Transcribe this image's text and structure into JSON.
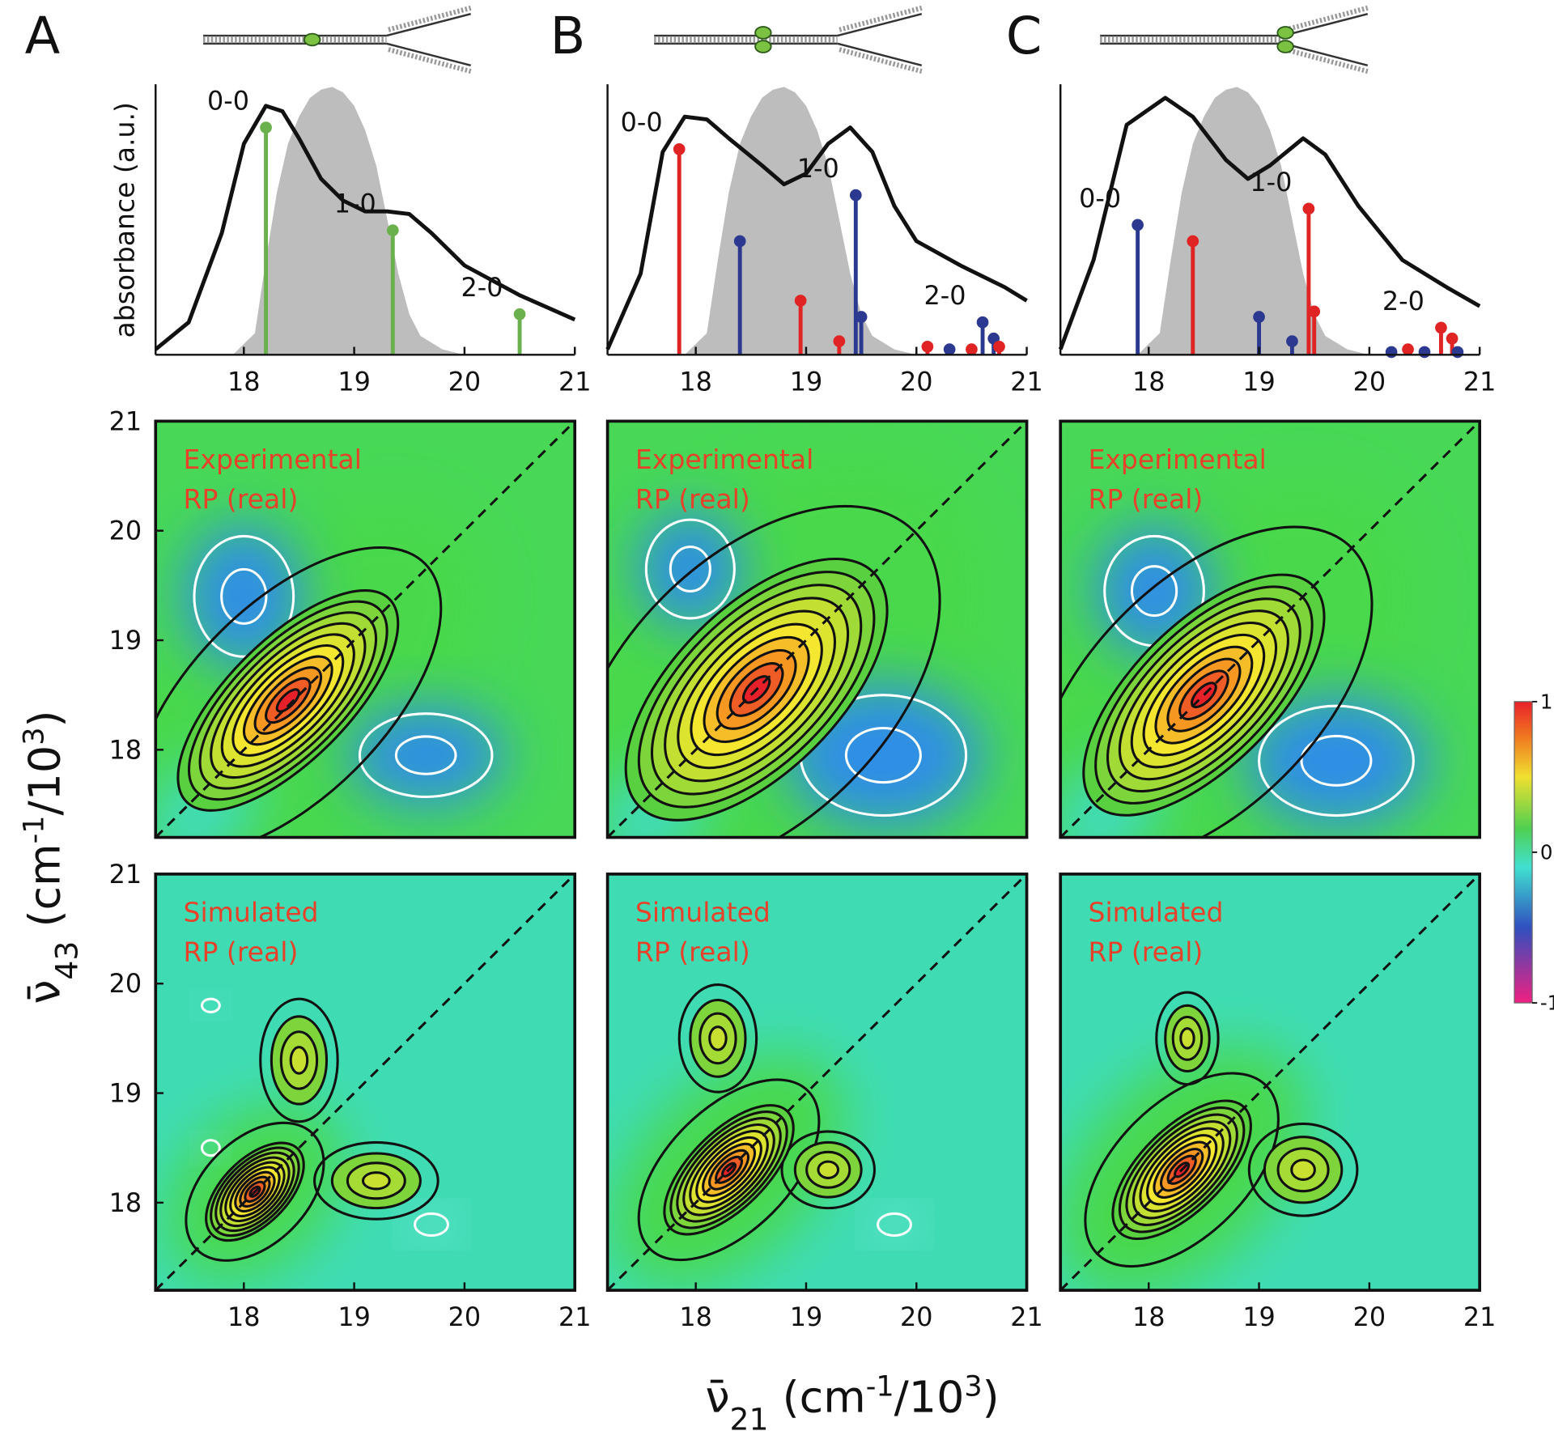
{
  "figure": {
    "panel_letters": [
      "A",
      "B",
      "C"
    ],
    "top_ylabel": "absorbance (a.u.)",
    "ylabel": [
      {
        "text": "ν̄"
      },
      {
        "text": "43",
        "shift": "sub"
      },
      {
        "text": " (cm"
      },
      {
        "text": "-1",
        "shift": "sup"
      },
      {
        "text": "/10"
      },
      {
        "text": "3",
        "shift": "sup"
      },
      {
        "text": ")"
      }
    ],
    "xlabel": [
      {
        "text": "ν̄"
      },
      {
        "text": "21",
        "shift": "sub"
      },
      {
        "text": " (cm"
      },
      {
        "text": "-1",
        "shift": "sup"
      },
      {
        "text": "/10"
      },
      {
        "text": "3",
        "shift": "sup"
      },
      {
        "text": ")"
      }
    ],
    "colorbar": {
      "lim": [
        -1,
        1
      ],
      "ticks": [
        1,
        0,
        -1
      ]
    }
  },
  "chart_data": [
    {
      "type": "stem",
      "xlim": [
        17.2,
        21
      ],
      "ylim": [
        0,
        1
      ],
      "xticks": [
        18,
        19,
        20,
        21
      ],
      "curve": {
        "x": [
          17.2,
          17.5,
          17.8,
          18.0,
          18.2,
          18.35,
          18.5,
          18.7,
          18.9,
          19.1,
          19.3,
          19.5,
          19.7,
          20.0,
          20.5,
          21.0
        ],
        "y": [
          0.02,
          0.12,
          0.45,
          0.78,
          0.92,
          0.9,
          0.8,
          0.65,
          0.57,
          0.53,
          0.53,
          0.52,
          0.45,
          0.33,
          0.22,
          0.13
        ]
      },
      "laser": {
        "x": [
          17.9,
          18.1,
          18.2,
          18.3,
          18.4,
          18.5,
          18.6,
          18.7,
          18.8,
          18.9,
          19.0,
          19.1,
          19.2,
          19.3,
          19.4,
          19.5,
          19.6,
          19.8,
          20.0
        ],
        "y": [
          0,
          0.08,
          0.35,
          0.6,
          0.78,
          0.88,
          0.95,
          0.98,
          0.99,
          0.97,
          0.92,
          0.83,
          0.7,
          0.5,
          0.3,
          0.15,
          0.07,
          0.02,
          0
        ]
      },
      "stems": [
        {
          "x": 18.2,
          "y": 0.84,
          "color": "#6ab04c",
          "label": "0-0"
        },
        {
          "x": 19.35,
          "y": 0.46,
          "color": "#6ab04c",
          "label": "1-0"
        },
        {
          "x": 20.5,
          "y": 0.15,
          "color": "#6ab04c",
          "label": "2-0"
        }
      ]
    },
    {
      "type": "stem",
      "xlim": [
        17.2,
        21
      ],
      "ylim": [
        0,
        1
      ],
      "xticks": [
        18,
        19,
        20,
        21
      ],
      "curve": {
        "x": [
          17.2,
          17.5,
          17.7,
          17.9,
          18.1,
          18.3,
          18.6,
          18.8,
          19.0,
          19.2,
          19.4,
          19.6,
          19.8,
          20.0,
          20.4,
          20.8,
          21.0
        ],
        "y": [
          0.02,
          0.3,
          0.75,
          0.88,
          0.87,
          0.8,
          0.7,
          0.63,
          0.67,
          0.78,
          0.84,
          0.75,
          0.55,
          0.42,
          0.33,
          0.25,
          0.2
        ]
      },
      "laser": {
        "x": [
          17.9,
          18.1,
          18.2,
          18.3,
          18.4,
          18.5,
          18.6,
          18.7,
          18.8,
          18.9,
          19.0,
          19.1,
          19.2,
          19.3,
          19.4,
          19.5,
          19.6,
          19.8,
          20.0
        ],
        "y": [
          0,
          0.08,
          0.35,
          0.6,
          0.78,
          0.88,
          0.95,
          0.98,
          0.99,
          0.97,
          0.92,
          0.83,
          0.7,
          0.5,
          0.3,
          0.15,
          0.07,
          0.02,
          0
        ]
      },
      "stems": [
        {
          "x": 17.85,
          "y": 0.76,
          "color": "#e02424",
          "label": "0-0"
        },
        {
          "x": 18.4,
          "y": 0.42,
          "color": "#2b3990"
        },
        {
          "x": 18.95,
          "y": 0.2,
          "color": "#e02424"
        },
        {
          "x": 19.3,
          "y": 0.05,
          "color": "#e02424"
        },
        {
          "x": 19.45,
          "y": 0.59,
          "color": "#2b3990",
          "label": "1-0"
        },
        {
          "x": 19.5,
          "y": 0.14,
          "color": "#2b3990"
        },
        {
          "x": 20.1,
          "y": 0.03,
          "color": "#e02424"
        },
        {
          "x": 20.3,
          "y": 0.02,
          "color": "#2b3990"
        },
        {
          "x": 20.5,
          "y": 0.02,
          "color": "#e02424"
        },
        {
          "x": 20.6,
          "y": 0.12,
          "color": "#2b3990",
          "label": "2-0"
        },
        {
          "x": 20.7,
          "y": 0.06,
          "color": "#2b3990"
        },
        {
          "x": 20.75,
          "y": 0.03,
          "color": "#e02424"
        }
      ]
    },
    {
      "type": "stem",
      "xlim": [
        17.2,
        21
      ],
      "ylim": [
        0,
        1
      ],
      "xticks": [
        18,
        19,
        20,
        21
      ],
      "curve": {
        "x": [
          17.2,
          17.5,
          17.8,
          18.15,
          18.4,
          18.7,
          18.9,
          19.1,
          19.4,
          19.6,
          19.9,
          20.3,
          20.7,
          21.0
        ],
        "y": [
          0.02,
          0.35,
          0.85,
          0.95,
          0.88,
          0.72,
          0.65,
          0.7,
          0.8,
          0.74,
          0.55,
          0.35,
          0.25,
          0.18
        ]
      },
      "laser": {
        "x": [
          17.9,
          18.1,
          18.2,
          18.3,
          18.4,
          18.5,
          18.6,
          18.7,
          18.8,
          18.9,
          19.0,
          19.1,
          19.2,
          19.3,
          19.4,
          19.5,
          19.6,
          19.8,
          20.0
        ],
        "y": [
          0,
          0.08,
          0.35,
          0.6,
          0.78,
          0.88,
          0.95,
          0.98,
          0.99,
          0.97,
          0.92,
          0.83,
          0.7,
          0.5,
          0.3,
          0.15,
          0.07,
          0.02,
          0
        ]
      },
      "stems": [
        {
          "x": 17.9,
          "y": 0.48,
          "color": "#2b3990",
          "label": "0-0"
        },
        {
          "x": 18.4,
          "y": 0.42,
          "color": "#e02424"
        },
        {
          "x": 19.0,
          "y": 0.14,
          "color": "#2b3990"
        },
        {
          "x": 19.3,
          "y": 0.05,
          "color": "#2b3990"
        },
        {
          "x": 19.45,
          "y": 0.54,
          "color": "#e02424",
          "label": "1-0"
        },
        {
          "x": 19.5,
          "y": 0.16,
          "color": "#e02424"
        },
        {
          "x": 20.2,
          "y": 0.01,
          "color": "#2b3990"
        },
        {
          "x": 20.35,
          "y": 0.02,
          "color": "#e02424"
        },
        {
          "x": 20.5,
          "y": 0.01,
          "color": "#2b3990"
        },
        {
          "x": 20.65,
          "y": 0.1,
          "color": "#e02424",
          "label": "2-0"
        },
        {
          "x": 20.75,
          "y": 0.06,
          "color": "#e02424"
        },
        {
          "x": 20.8,
          "y": 0.01,
          "color": "#2b3990"
        }
      ]
    },
    {
      "type": "contour",
      "annotation": [
        "Experimental",
        "RP (real)"
      ],
      "xlim": [
        17.2,
        21
      ],
      "ylim": [
        17.2,
        21
      ],
      "yticks": [
        18,
        19,
        20,
        21
      ]
    },
    {
      "type": "contour",
      "annotation": [
        "Experimental",
        "RP (real)"
      ],
      "xlim": [
        17.2,
        21
      ],
      "ylim": [
        17.2,
        21
      ]
    },
    {
      "type": "contour",
      "annotation": [
        "Experimental",
        "RP (real)"
      ],
      "xlim": [
        17.2,
        21
      ],
      "ylim": [
        17.2,
        21
      ]
    },
    {
      "type": "contour",
      "annotation": [
        "Simulated",
        "RP (real)"
      ],
      "xlim": [
        17.2,
        21
      ],
      "ylim": [
        17.2,
        21
      ],
      "yticks": [
        18,
        19,
        20,
        21
      ],
      "xticks": [
        18,
        19,
        20,
        21
      ]
    },
    {
      "type": "contour",
      "annotation": [
        "Simulated",
        "RP (real)"
      ],
      "xlim": [
        17.2,
        21
      ],
      "ylim": [
        17.2,
        21
      ],
      "xticks": [
        18,
        19,
        20,
        21
      ]
    },
    {
      "type": "contour",
      "annotation": [
        "Simulated",
        "RP (real)"
      ],
      "xlim": [
        17.2,
        21
      ],
      "ylim": [
        17.2,
        21
      ],
      "xticks": [
        18,
        19,
        20,
        21
      ]
    }
  ]
}
